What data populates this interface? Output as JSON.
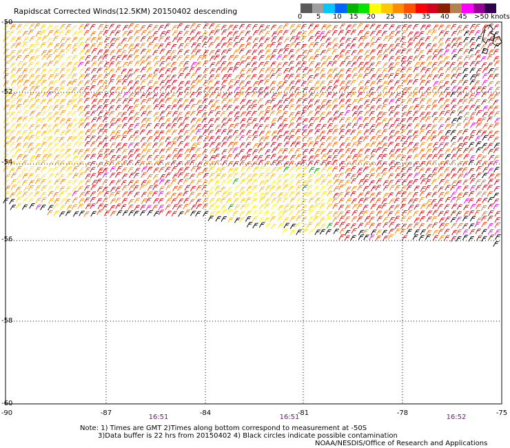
{
  "title": "Rapidscat Corrected Winds(12.5KM) 20150402 descending",
  "speed_scale": {
    "labels": [
      "0",
      "5",
      "10",
      "15",
      "20",
      "25",
      "30",
      "35",
      "40",
      "45",
      ">50 knots"
    ],
    "colors": [
      "#5a5a5a",
      "#9e9e9e",
      "#00c8ff",
      "#0064ff",
      "#00b400",
      "#00e600",
      "#ffff00",
      "#ffc800",
      "#ff8c00",
      "#ff5000",
      "#ff0000",
      "#d2001e",
      "#8c1e00",
      "#b48250",
      "#ff00ff",
      "#960096",
      "#320050"
    ]
  },
  "axes": {
    "lat_labels": [
      "-50",
      "-52",
      "-54",
      "-56",
      "-58",
      "-60"
    ],
    "lon_labels": [
      "-90",
      "-87",
      "-84",
      "-81",
      "-78",
      "-75"
    ]
  },
  "time_labels": [
    "16:51",
    "16:51",
    "16:52"
  ],
  "notes": {
    "line1": "Note: 1) Times are GMT 2)Times along bottom correspond to measurement at -50S",
    "line2": "3)Data buffer is 22 hrs from 20150402 4) Black circles indicate possible contamination",
    "credit": "NOAA/NESDIS/Office of Research and Applications"
  }
}
